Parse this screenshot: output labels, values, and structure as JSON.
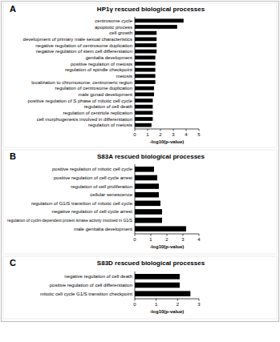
{
  "chart_data": [
    {
      "type": "bar",
      "orientation": "horizontal",
      "annotations": [
        "A"
      ],
      "title": "HP1γ rescued biological processes",
      "xlabel": "-log10(p-value)",
      "categories": [
        "centrosome cycle",
        "apoptotic process",
        "cell growth",
        "development of primary male sexual characteristics",
        "negative regulation of centrosome duplication",
        "negative regulation of stem cell differentiation",
        "genitalia development",
        "positive regulation of meiosis",
        "regulation of spindle checkpoint",
        "meiosis",
        "localization to chromosome, centromeric region",
        "regulation of centrosome duplication",
        "male gonad development",
        "positive regulation of S phase of mitotic cell cycle",
        "regulation of cell death",
        "regulation of centriole replication",
        "cell morphogenesis involved in differentiation",
        "regulation of meiosis"
      ],
      "values": [
        3.8,
        3.3,
        1.7,
        1.7,
        1.7,
        1.7,
        1.6,
        1.6,
        1.6,
        1.6,
        1.6,
        1.5,
        1.5,
        1.4,
        1.4,
        1.4,
        1.4,
        1.3
      ],
      "color": "#000000",
      "xlim": [
        0,
        5
      ],
      "xticks": [
        0,
        1,
        2,
        3,
        4,
        5
      ],
      "grid": false
    },
    {
      "type": "bar",
      "orientation": "horizontal",
      "annotations": [
        "B"
      ],
      "title": "S83A rescued biological processes",
      "xlabel": "-log10(p-value)",
      "categories": [
        "positive regulation of mitotic cell cycle",
        "positive regulation of cell cycle arrest",
        "regulation of cell proliferation",
        "cellular senescence",
        "regulation of G1/S transition of mitotic cell cycle",
        "negative regulation of cell cycle arrest",
        "regulation of cyclin-dependent protein kinase activity involved in G1/S",
        "male genitalia development"
      ],
      "values": [
        1.2,
        1.4,
        1.5,
        1.5,
        1.6,
        1.7,
        1.7,
        3.2
      ],
      "color": "#000000",
      "xlim": [
        0,
        4
      ],
      "xticks": [
        0,
        1,
        2,
        3,
        4
      ],
      "grid": false
    },
    {
      "type": "bar",
      "orientation": "horizontal",
      "annotations": [
        "C"
      ],
      "title": "S83D rescued biological processes",
      "xlabel": "-log10(p-value)",
      "categories": [
        "negative regulation of cell death",
        "positive regulation of cell differentiation",
        "mitotic cell cycle G1/S transition checkpoint"
      ],
      "values": [
        2.1,
        2.1,
        2.6
      ],
      "color": "#000000",
      "xlim": [
        0,
        3
      ],
      "xticks": [
        0,
        1,
        2,
        3
      ],
      "grid": false
    }
  ]
}
